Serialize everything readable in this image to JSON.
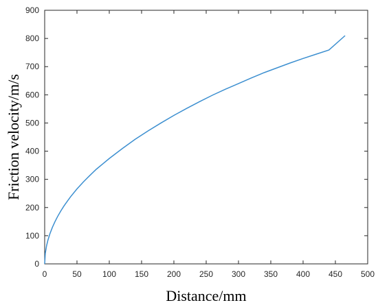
{
  "chart_data": {
    "type": "line",
    "title": "",
    "xlabel": "Distance/mm",
    "ylabel": "Friction velocity/m/s",
    "xlim": [
      0,
      500
    ],
    "ylim": [
      0,
      900
    ],
    "xticks": [
      0,
      50,
      100,
      150,
      200,
      250,
      300,
      350,
      400,
      450,
      500
    ],
    "yticks": [
      0,
      100,
      200,
      300,
      400,
      500,
      600,
      700,
      800,
      900
    ],
    "grid": false,
    "legend": "none",
    "series": [
      {
        "color": "#3c8fd0",
        "x": [
          0,
          1,
          3,
          5,
          8,
          12,
          16,
          20,
          25,
          30,
          35,
          40,
          50,
          60,
          70,
          80,
          90,
          100,
          120,
          140,
          160,
          180,
          200,
          220,
          240,
          260,
          280,
          300,
          320,
          340,
          360,
          380,
          400,
          420,
          440,
          465
        ],
        "y": [
          0,
          38,
          65,
          84,
          106,
          130,
          150,
          168,
          188,
          206,
          222,
          238,
          266,
          291,
          314,
          336,
          355,
          374,
          409,
          442,
          472,
          500,
          527,
          552,
          576,
          599,
          620,
          640,
          660,
          679,
          696,
          713,
          729,
          744,
          759,
          810
        ]
      }
    ]
  }
}
